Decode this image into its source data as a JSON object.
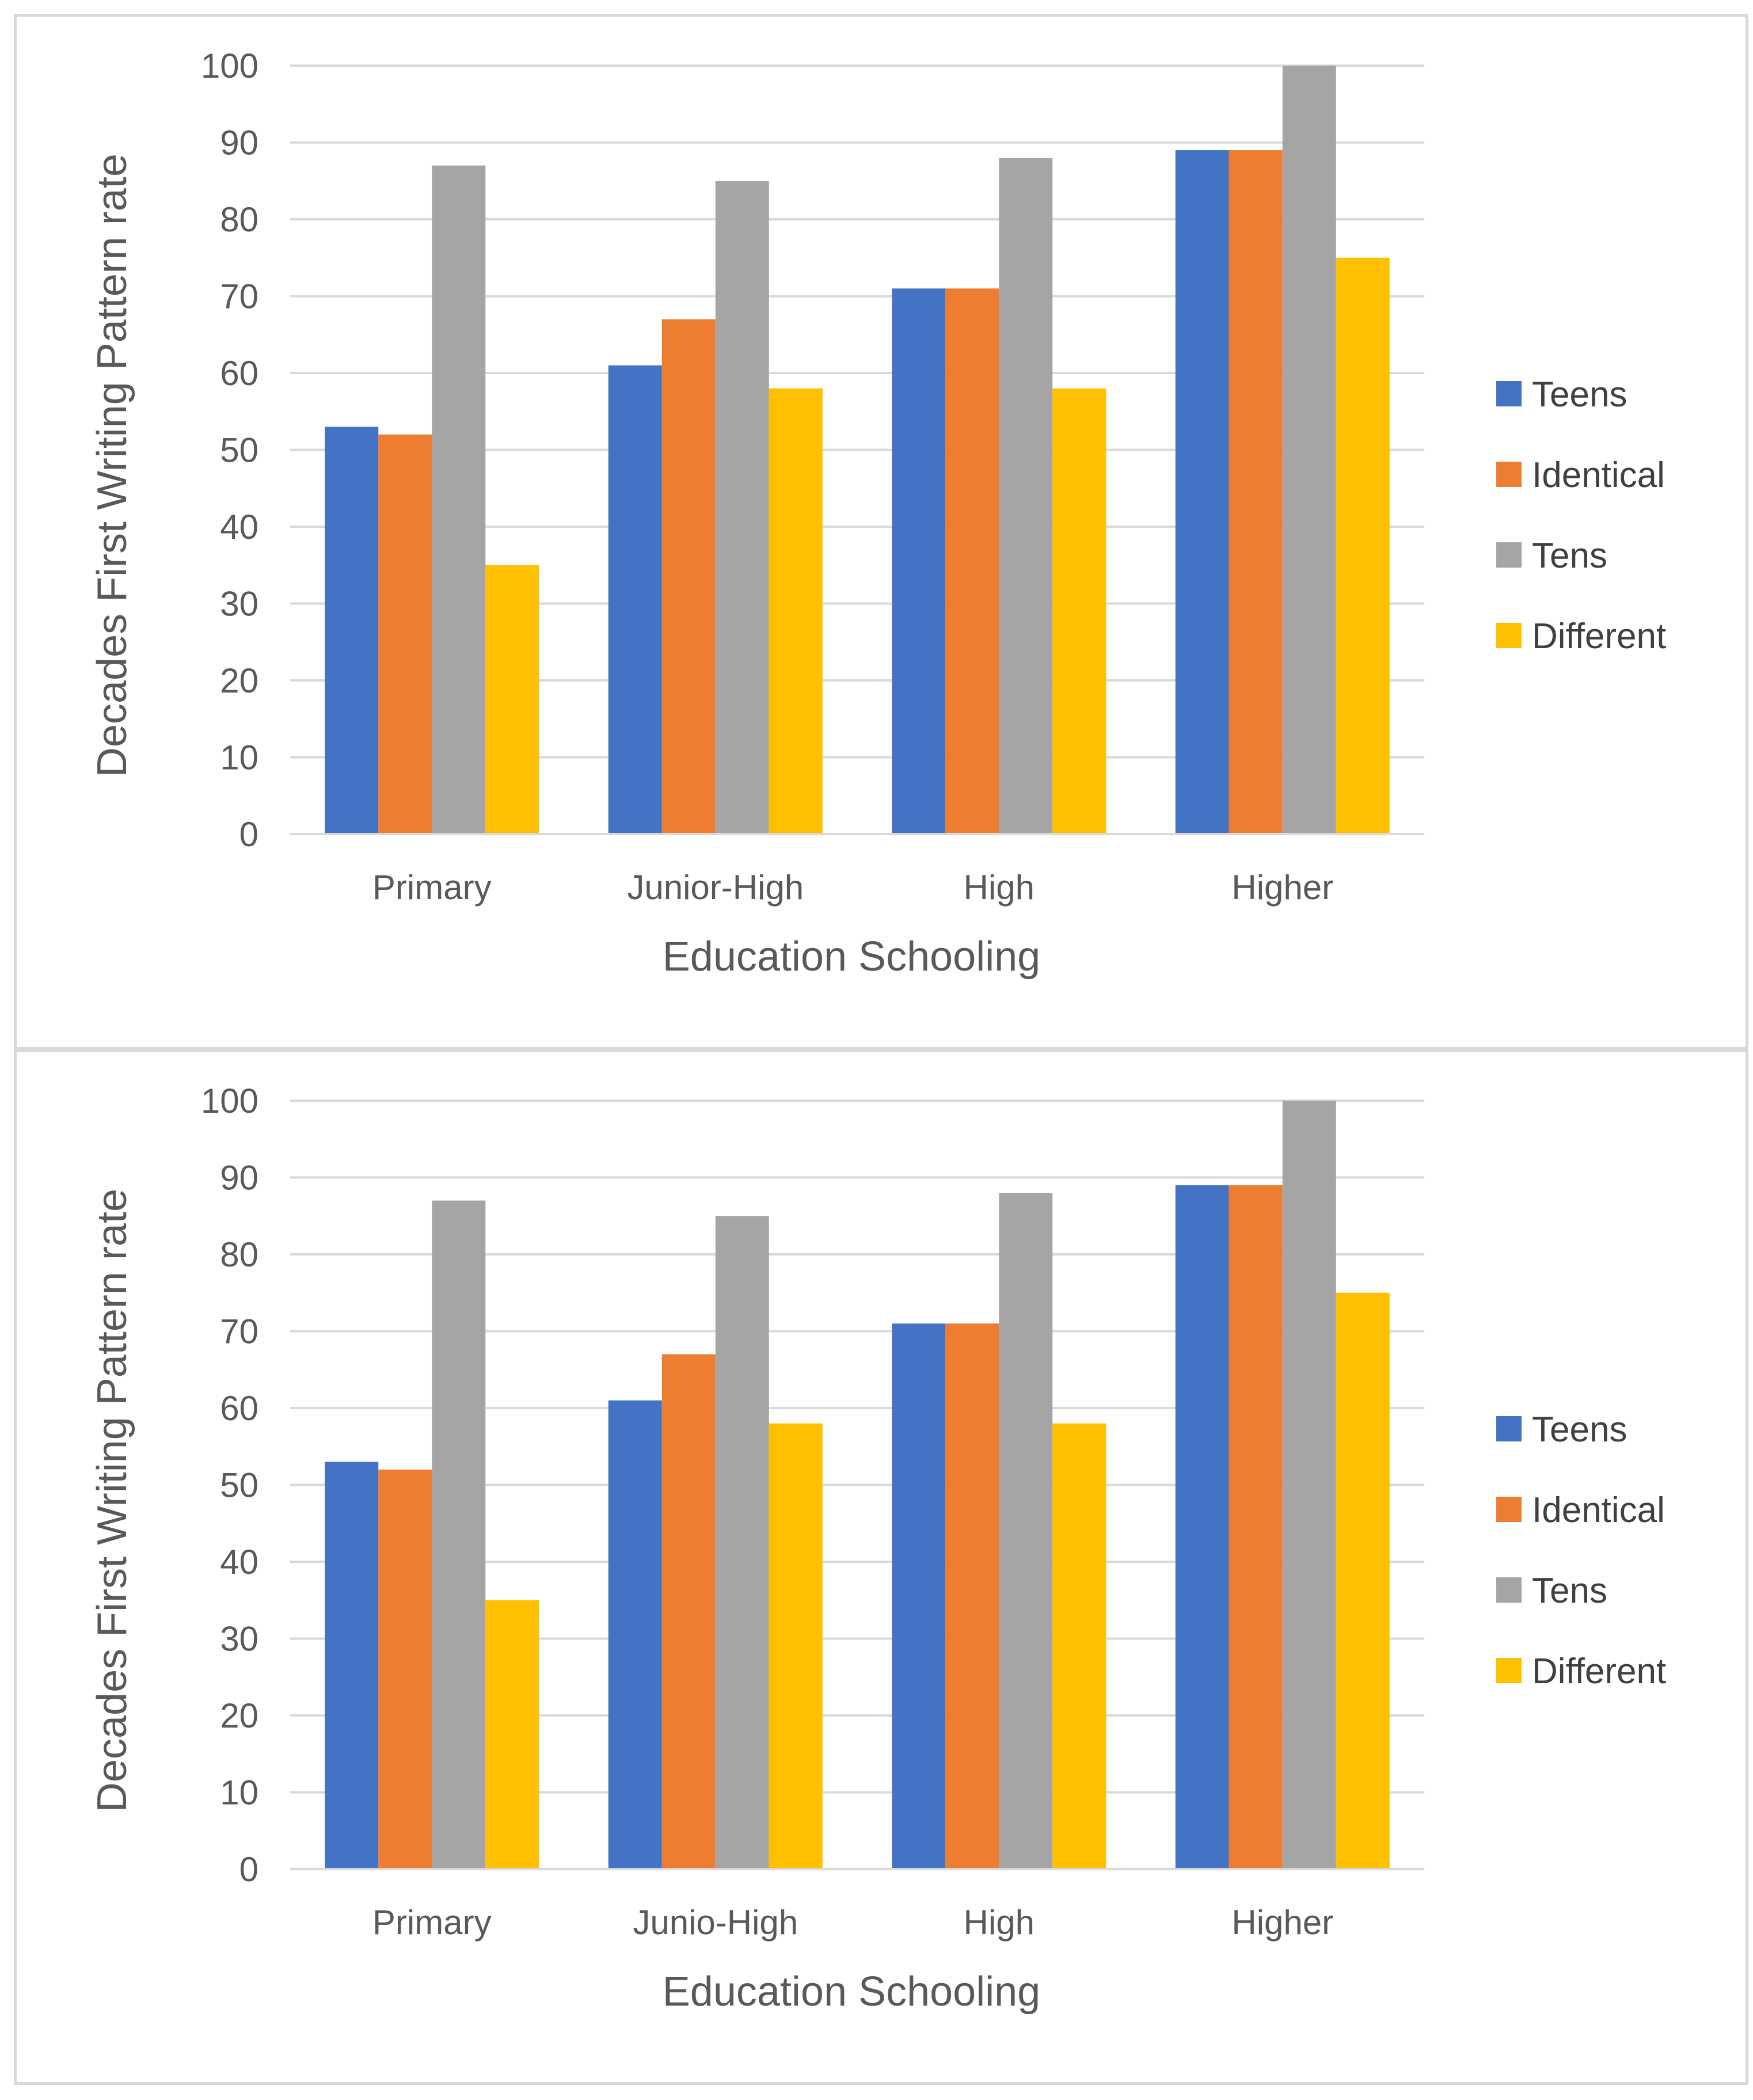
{
  "chart_data": [
    {
      "type": "bar",
      "title": "",
      "xlabel": "Education Schooling",
      "ylabel": "Decades First Writing Pattern rate",
      "categories": [
        "Primary",
        "Junior-High",
        "High",
        "Higher"
      ],
      "series": [
        {
          "name": "Teens",
          "color": "#4472C4",
          "values": [
            53,
            61,
            71,
            89
          ]
        },
        {
          "name": "Identical",
          "color": "#ED7D31",
          "values": [
            52,
            67,
            71,
            89
          ]
        },
        {
          "name": "Tens",
          "color": "#A5A5A5",
          "values": [
            87,
            85,
            88,
            100
          ]
        },
        {
          "name": "Different",
          "color": "#FFC000",
          "values": [
            35,
            58,
            58,
            75
          ]
        }
      ],
      "ylim": [
        0,
        100
      ],
      "yticks": [
        "0",
        "10",
        "20",
        "30",
        "40",
        "50",
        "60",
        "70",
        "80",
        "90",
        "100"
      ],
      "grid": true,
      "legend_position": "right"
    },
    {
      "type": "bar",
      "title": "",
      "xlabel": "Education Schooling",
      "ylabel": "Decades First Writing Pattern rate",
      "categories": [
        "Primary",
        "Junio-High",
        "High",
        "Higher"
      ],
      "series": [
        {
          "name": "Teens",
          "color": "#4472C4",
          "values": [
            53,
            61,
            71,
            89
          ]
        },
        {
          "name": "Identical",
          "color": "#ED7D31",
          "values": [
            52,
            67,
            71,
            89
          ]
        },
        {
          "name": "Tens",
          "color": "#A5A5A5",
          "values": [
            87,
            85,
            88,
            100
          ]
        },
        {
          "name": "Different",
          "color": "#FFC000",
          "values": [
            35,
            58,
            58,
            75
          ]
        }
      ],
      "ylim": [
        0,
        100
      ],
      "yticks": [
        "0",
        "10",
        "20",
        "30",
        "40",
        "50",
        "60",
        "70",
        "80",
        "90",
        "100"
      ],
      "grid": true,
      "legend_position": "right"
    }
  ]
}
